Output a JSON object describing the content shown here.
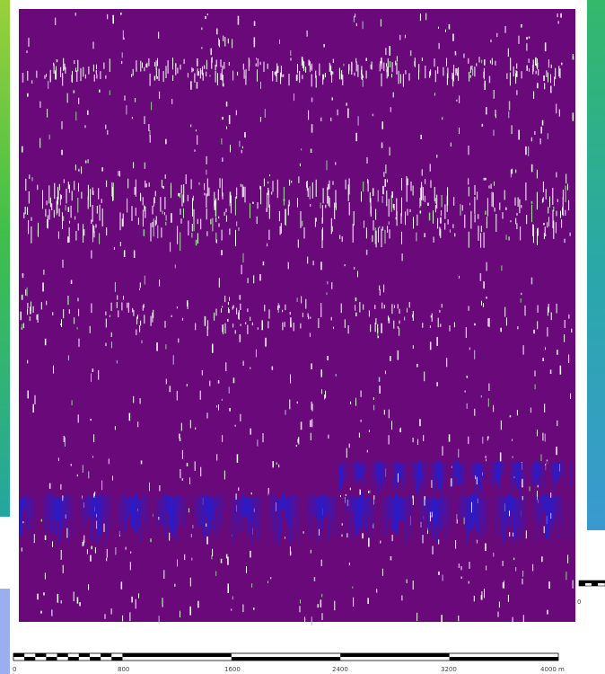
{
  "map": {
    "survey_fill_color": "#6a0a7a",
    "artifact_color": "#ffffff",
    "stripe_color": "#2a1ac8",
    "left_strip_gradient": [
      "#9bd03a",
      "#3fbf4a",
      "#24a6a0"
    ],
    "right_strip_gradient": [
      "#34b86a",
      "#2aa8a8",
      "#3a9ad0"
    ],
    "side_panel_color": "#9aaef0"
  },
  "scale_bar": {
    "ticks": [
      "0",
      "800",
      "1600",
      "2400",
      "3200",
      "4000 m"
    ],
    "mini_tick": "0"
  }
}
